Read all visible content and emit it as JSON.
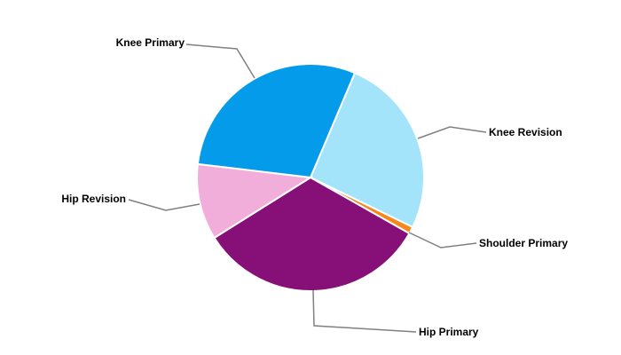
{
  "chart_data": {
    "type": "pie",
    "direction": "clockwise",
    "start_angle_deg_from_top": 23,
    "slices": [
      {
        "label": "Knee Revision",
        "value": 25.8,
        "color": "#a3e4fb"
      },
      {
        "label": "Shoulder Primary",
        "value": 1.0,
        "color": "#f7861b"
      },
      {
        "label": "Hip Primary",
        "value": 32.9,
        "color": "#861078"
      },
      {
        "label": "Hip Revision",
        "value": 10.8,
        "color": "#f1aedb"
      },
      {
        "label": "Knee Primary",
        "value": 29.5,
        "color": "#049cea"
      }
    ],
    "legend": "none",
    "labels": "outside-with-leader-lines"
  }
}
